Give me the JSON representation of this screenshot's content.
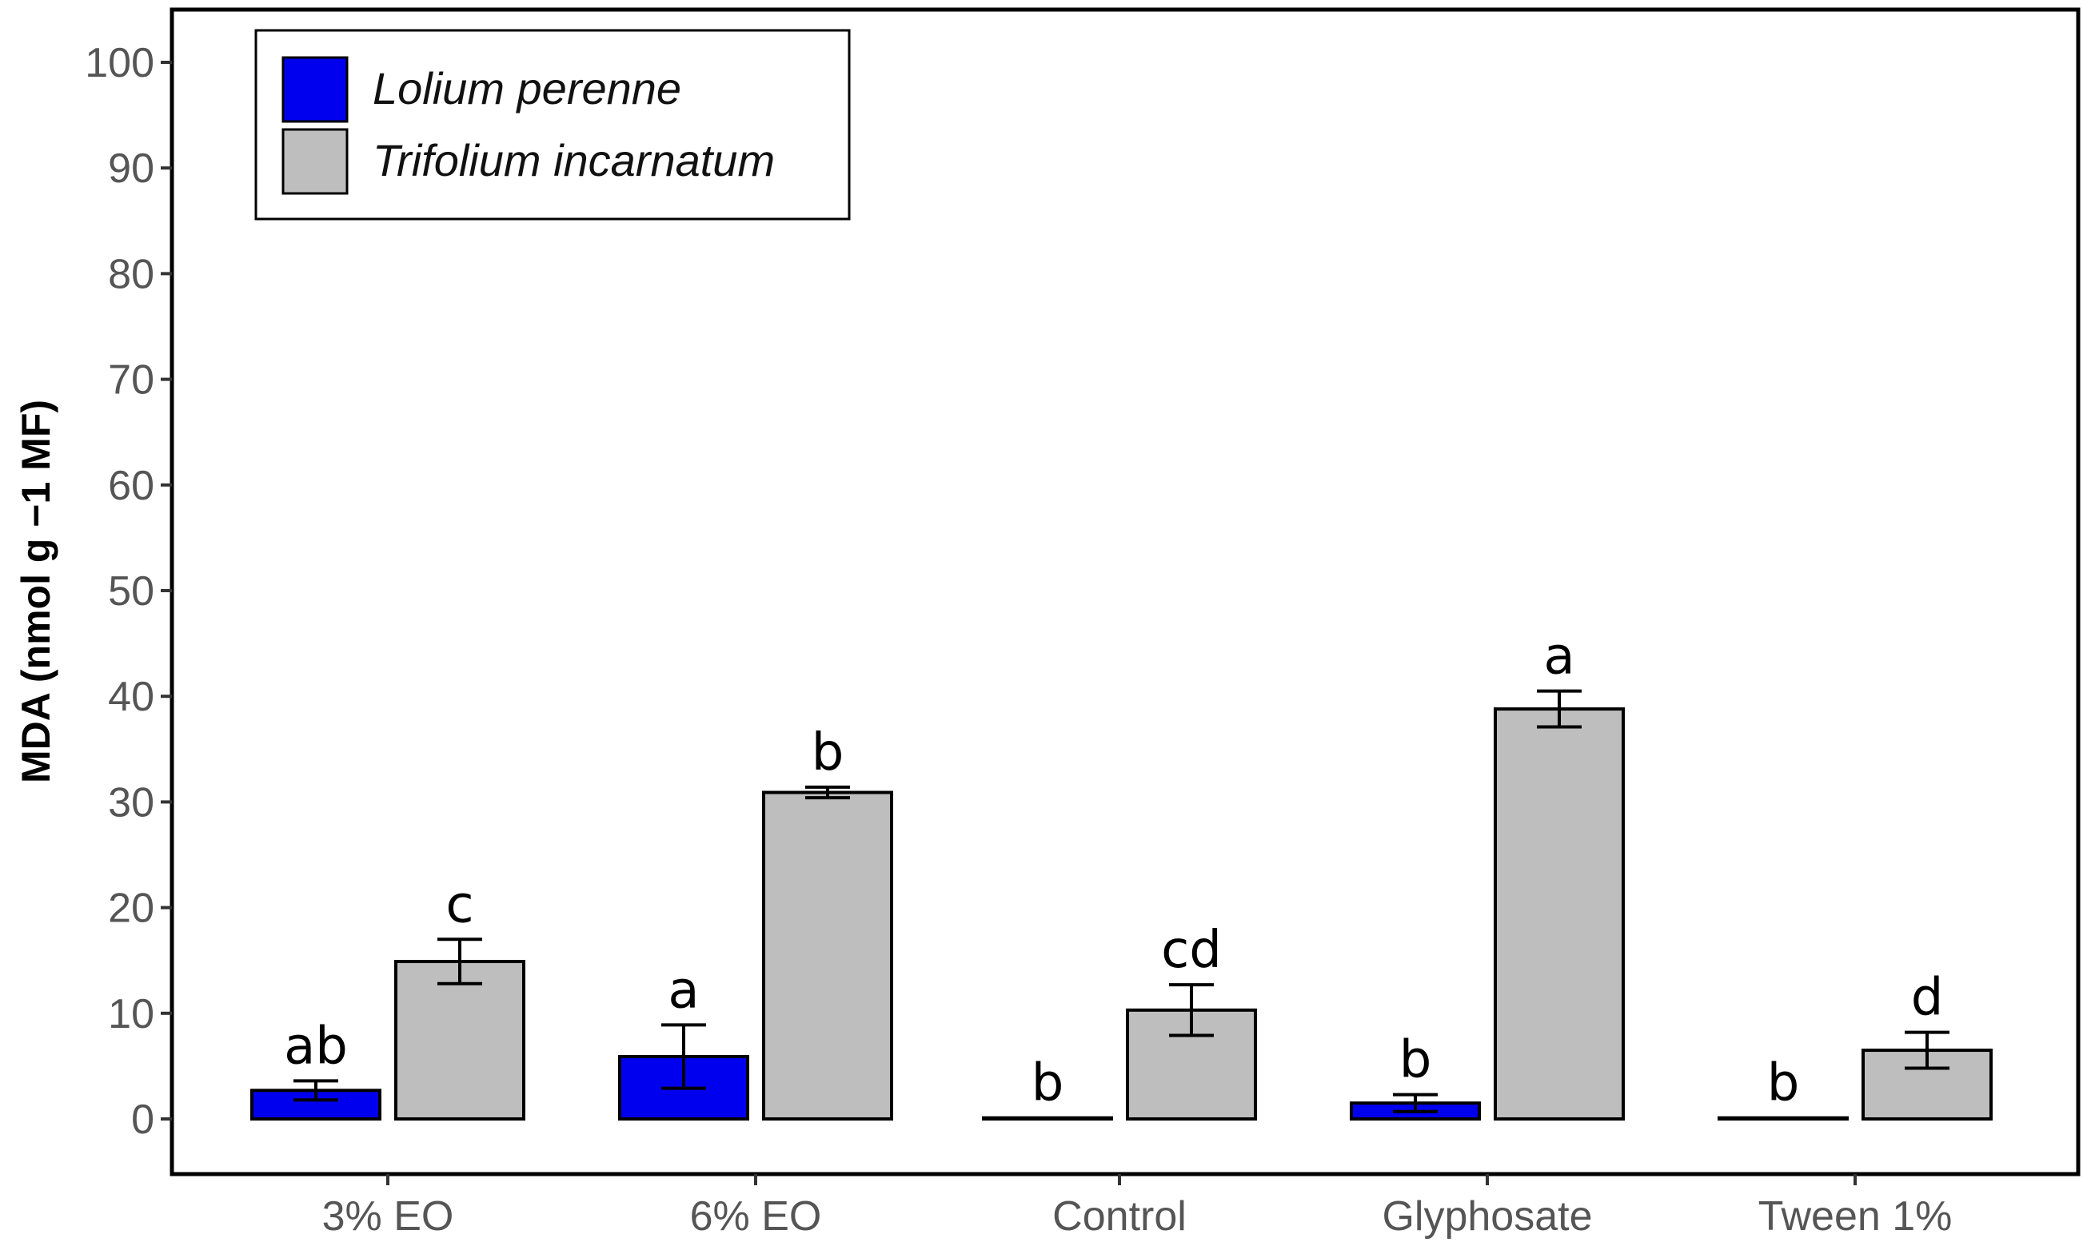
{
  "chart_data": {
    "type": "bar",
    "title": "",
    "xlabel": "",
    "ylabel": "MDA (nmol g −1 MF)",
    "ylim": [
      0,
      100
    ],
    "yticks": [
      0,
      10,
      20,
      30,
      40,
      50,
      60,
      70,
      80,
      90,
      100
    ],
    "categories": [
      "3% EO",
      "6% EO",
      "Control",
      "Glyphosate",
      "Tween 1%"
    ],
    "series": [
      {
        "name": "Lolium perenne",
        "color": "#0000ee",
        "values": [
          2.7,
          5.9,
          0.1,
          1.5,
          0.1
        ],
        "errors": [
          0.9,
          3.0,
          0,
          0.8,
          0
        ],
        "letters": [
          "ab",
          "a",
          "b",
          "b",
          "b"
        ]
      },
      {
        "name": "Trifolium incarnatum",
        "color": "#bebebe",
        "values": [
          14.9,
          30.9,
          10.3,
          38.8,
          6.5
        ],
        "errors": [
          2.1,
          0.5,
          2.4,
          1.7,
          1.7
        ],
        "letters": [
          "c",
          "b",
          "cd",
          "a",
          "d"
        ]
      }
    ],
    "legend_position": "top-left",
    "grid": false
  }
}
